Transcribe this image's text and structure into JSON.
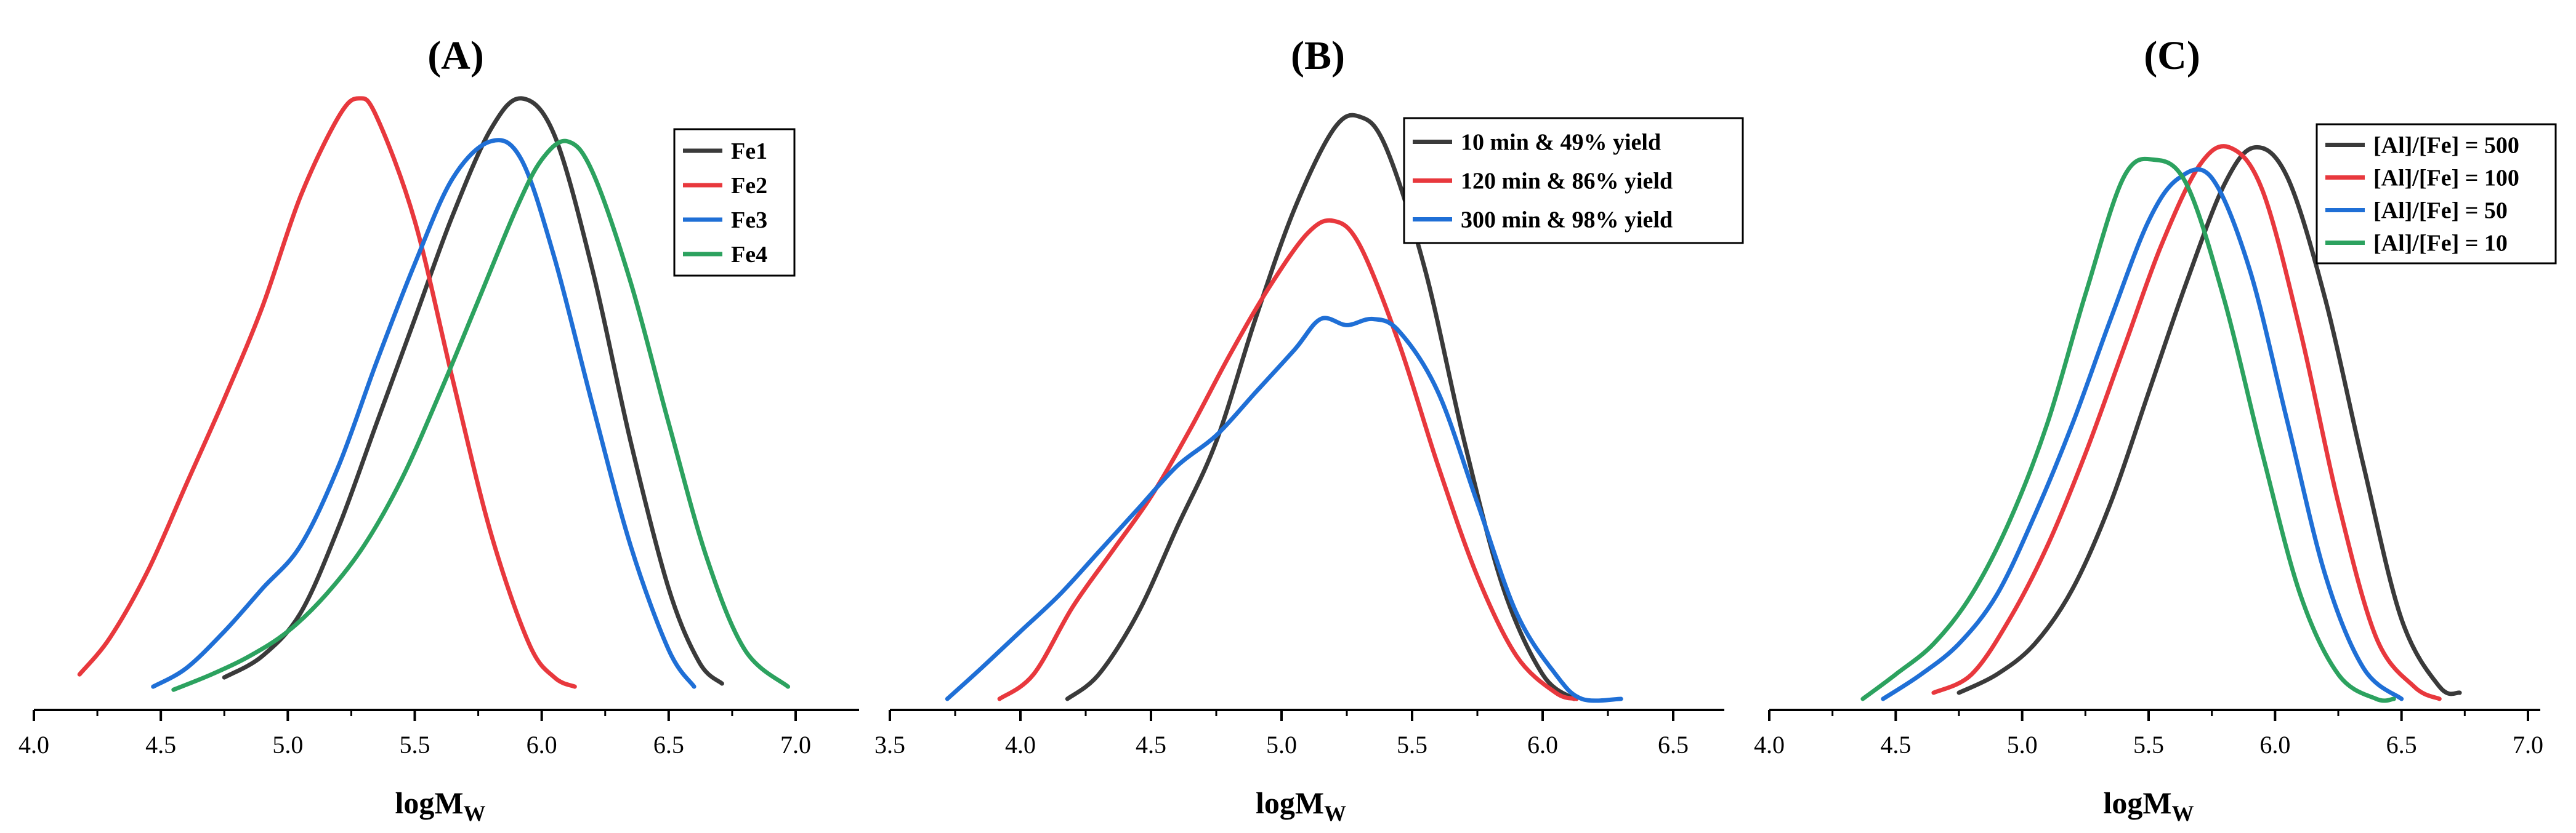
{
  "colors": {
    "black": "#3a3a3a",
    "red": "#e8383d",
    "blue": "#1f6fd6",
    "green": "#2ca25f"
  },
  "chart_data": [
    {
      "type": "line",
      "title": "(A)",
      "xlabel": "logM",
      "xlabel_sub": "W",
      "ylabel": "",
      "xlim": [
        4.0,
        7.2
      ],
      "ylim": [
        0,
        1.0
      ],
      "xticks": [
        "4.0",
        "4.5",
        "5.0",
        "5.5",
        "6.0",
        "6.5",
        "7.0"
      ],
      "legend_position": "top-right",
      "series": [
        {
          "name": "Fe1",
          "color": "#3a3a3a",
          "x": [
            4.75,
            4.9,
            5.05,
            5.2,
            5.35,
            5.5,
            5.65,
            5.8,
            5.92,
            6.05,
            6.2,
            6.35,
            6.5,
            6.62,
            6.71
          ],
          "y": [
            0.035,
            0.07,
            0.14,
            0.28,
            0.45,
            0.62,
            0.79,
            0.93,
            0.98,
            0.92,
            0.7,
            0.42,
            0.18,
            0.06,
            0.025
          ]
        },
        {
          "name": "Fe2",
          "color": "#e8383d",
          "x": [
            4.18,
            4.3,
            4.45,
            4.6,
            4.75,
            4.9,
            5.05,
            5.2,
            5.28,
            5.35,
            5.5,
            5.65,
            5.8,
            5.95,
            6.05,
            6.13
          ],
          "y": [
            0.04,
            0.1,
            0.21,
            0.35,
            0.49,
            0.64,
            0.82,
            0.95,
            0.98,
            0.95,
            0.78,
            0.52,
            0.27,
            0.09,
            0.035,
            0.02
          ]
        },
        {
          "name": "Fe3",
          "color": "#1f6fd6",
          "x": [
            4.47,
            4.6,
            4.75,
            4.9,
            5.05,
            5.2,
            5.35,
            5.5,
            5.65,
            5.8,
            5.92,
            6.05,
            6.2,
            6.35,
            6.5,
            6.6
          ],
          "y": [
            0.02,
            0.05,
            0.11,
            0.18,
            0.25,
            0.38,
            0.55,
            0.71,
            0.85,
            0.91,
            0.88,
            0.72,
            0.48,
            0.25,
            0.08,
            0.02
          ]
        },
        {
          "name": "Fe4",
          "color": "#2ca25f",
          "x": [
            4.55,
            4.7,
            4.85,
            5.0,
            5.15,
            5.3,
            5.45,
            5.6,
            5.75,
            5.9,
            6.0,
            6.1,
            6.2,
            6.35,
            6.5,
            6.65,
            6.8,
            6.97
          ],
          "y": [
            0.015,
            0.04,
            0.07,
            0.11,
            0.17,
            0.25,
            0.36,
            0.5,
            0.65,
            0.8,
            0.88,
            0.91,
            0.86,
            0.68,
            0.45,
            0.23,
            0.08,
            0.02
          ]
        }
      ]
    },
    {
      "type": "line",
      "title": "(B)",
      "xlabel": "logM",
      "xlabel_sub": "W",
      "ylabel": "",
      "xlim": [
        3.5,
        6.7
      ],
      "ylim": [
        0,
        1.0
      ],
      "xticks": [
        "3.5",
        "4.0",
        "4.5",
        "5.0",
        "5.5",
        "6.0",
        "6.5"
      ],
      "legend_position": "top-right",
      "series": [
        {
          "name": "10  min & 49% yield",
          "color": "#3a3a3a",
          "x": [
            4.18,
            4.3,
            4.45,
            4.6,
            4.75,
            4.9,
            5.05,
            5.2,
            5.3,
            5.4,
            5.55,
            5.7,
            5.85,
            6.0,
            6.12
          ],
          "y": [
            0.0,
            0.04,
            0.14,
            0.28,
            0.42,
            0.62,
            0.8,
            0.93,
            0.95,
            0.9,
            0.7,
            0.42,
            0.18,
            0.04,
            0.0
          ]
        },
        {
          "name": "120 min & 86% yield",
          "color": "#e8383d",
          "x": [
            3.92,
            4.05,
            4.2,
            4.35,
            4.5,
            4.65,
            4.8,
            4.95,
            5.1,
            5.2,
            5.3,
            5.45,
            5.6,
            5.75,
            5.9,
            6.05,
            6.13
          ],
          "y": [
            0.0,
            0.04,
            0.15,
            0.24,
            0.33,
            0.44,
            0.56,
            0.67,
            0.76,
            0.78,
            0.74,
            0.58,
            0.38,
            0.2,
            0.07,
            0.01,
            0.0
          ]
        },
        {
          "name": "300 min & 98% yield",
          "color": "#1f6fd6",
          "x": [
            3.72,
            3.85,
            4.0,
            4.15,
            4.3,
            4.45,
            4.6,
            4.75,
            4.9,
            5.05,
            5.15,
            5.25,
            5.35,
            5.45,
            5.6,
            5.75,
            5.9,
            6.05,
            6.15,
            6.3
          ],
          "y": [
            0.0,
            0.05,
            0.11,
            0.17,
            0.24,
            0.31,
            0.38,
            0.43,
            0.5,
            0.57,
            0.62,
            0.61,
            0.62,
            0.6,
            0.5,
            0.32,
            0.14,
            0.04,
            0.0,
            0.0
          ]
        }
      ]
    },
    {
      "type": "line",
      "title": "(C)",
      "xlabel": "logM",
      "xlabel_sub": "W",
      "ylabel": "",
      "xlim": [
        4.0,
        7.0
      ],
      "ylim": [
        0,
        1.0
      ],
      "xticks": [
        "4.0",
        "4.5",
        "5.0",
        "5.5",
        "6.0",
        "6.5",
        "7.0"
      ],
      "legend_position": "top-right",
      "series": [
        {
          "name": "[Al]/[Fe] = 500",
          "color": "#3a3a3a",
          "x": [
            4.75,
            4.9,
            5.05,
            5.2,
            5.35,
            5.5,
            5.65,
            5.8,
            5.92,
            6.05,
            6.2,
            6.35,
            6.5,
            6.65,
            6.73
          ],
          "y": [
            0.01,
            0.04,
            0.09,
            0.18,
            0.32,
            0.5,
            0.68,
            0.84,
            0.9,
            0.85,
            0.65,
            0.38,
            0.13,
            0.02,
            0.01
          ]
        },
        {
          "name": "[Al]/[Fe] = 100",
          "color": "#e8383d",
          "x": [
            4.65,
            4.8,
            4.95,
            5.1,
            5.25,
            5.4,
            5.55,
            5.7,
            5.82,
            5.95,
            6.1,
            6.25,
            6.4,
            6.55,
            6.65
          ],
          "y": [
            0.01,
            0.04,
            0.13,
            0.25,
            0.4,
            0.57,
            0.74,
            0.87,
            0.9,
            0.83,
            0.6,
            0.32,
            0.1,
            0.02,
            0.0
          ]
        },
        {
          "name": "[Al]/[Fe] = 50",
          "color": "#1f6fd6",
          "x": [
            4.45,
            4.6,
            4.75,
            4.9,
            5.05,
            5.2,
            5.35,
            5.5,
            5.62,
            5.75,
            5.9,
            6.05,
            6.2,
            6.35,
            6.5
          ],
          "y": [
            0.0,
            0.04,
            0.09,
            0.17,
            0.3,
            0.45,
            0.62,
            0.78,
            0.85,
            0.85,
            0.7,
            0.45,
            0.2,
            0.05,
            0.0
          ]
        },
        {
          "name": "[Al]/[Fe] = 10",
          "color": "#2ca25f",
          "x": [
            4.37,
            4.5,
            4.65,
            4.8,
            4.95,
            5.1,
            5.25,
            5.4,
            5.52,
            5.65,
            5.8,
            5.95,
            6.1,
            6.25,
            6.4,
            6.47
          ],
          "y": [
            0.0,
            0.04,
            0.09,
            0.17,
            0.29,
            0.45,
            0.66,
            0.85,
            0.88,
            0.84,
            0.65,
            0.4,
            0.17,
            0.04,
            0.0,
            0.0
          ]
        }
      ]
    }
  ]
}
